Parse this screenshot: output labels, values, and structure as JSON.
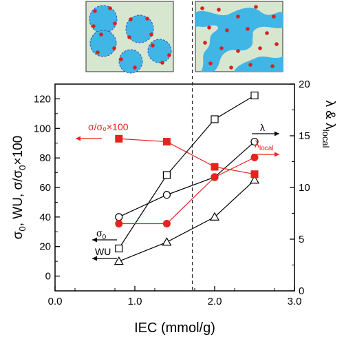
{
  "chart_data": {
    "type": "line",
    "xlabel": "IEC (mmol/g)",
    "ylabel_left": "σ₀, WU, σ/σ₀×100",
    "ylabel_right": "λ & λlocal",
    "xlim": [
      0,
      3.0
    ],
    "ylim_left": [
      -10,
      130
    ],
    "ylim_right": [
      0,
      20
    ],
    "x_ticks": [
      0.0,
      1.0,
      2.0,
      3.0
    ],
    "x_tick_labels": [
      "0.0",
      "1.0",
      "2.0",
      "3.0"
    ],
    "y_left_ticks": [
      0,
      20,
      40,
      60,
      80,
      100,
      120
    ],
    "y_left_tick_labels": [
      "0",
      "20",
      "40",
      "60",
      "80",
      "100",
      "120"
    ],
    "y_right_ticks": [
      0,
      5,
      10,
      15,
      20
    ],
    "y_right_tick_labels": [
      "0",
      "5",
      "10",
      "15",
      "20"
    ],
    "divider_x": 1.72,
    "grid": false,
    "colors": {
      "black": "#000000",
      "red": "#e8221e"
    },
    "series": [
      {
        "name": "σ₀",
        "axis": "left",
        "marker": "open-circle",
        "color": "#000000",
        "x": [
          0.8,
          1.4,
          2.0,
          2.5
        ],
        "y": [
          40,
          55,
          67,
          91
        ]
      },
      {
        "name": "WU",
        "axis": "left",
        "marker": "open-triangle",
        "color": "#000000",
        "x": [
          0.8,
          1.4,
          2.0,
          2.5
        ],
        "y": [
          10,
          23,
          40,
          65
        ]
      },
      {
        "name": "σ/σ₀×100",
        "axis": "left",
        "marker": "filled-square",
        "color": "#e8221e",
        "x": [
          0.8,
          1.4,
          2.0,
          2.5
        ],
        "y": [
          93,
          91,
          74,
          69
        ]
      },
      {
        "name": "λ",
        "axis": "right",
        "marker": "open-square",
        "color": "#000000",
        "x": [
          0.8,
          1.4,
          2.0,
          2.5
        ],
        "y": [
          4.1,
          11.2,
          16.6,
          18.9
        ]
      },
      {
        "name": "λlocal",
        "axis": "right",
        "marker": "filled-circle",
        "color": "#e8221e",
        "x": [
          0.8,
          1.4,
          2.0,
          2.5
        ],
        "y": [
          6.5,
          6.5,
          11.0,
          12.9
        ]
      }
    ],
    "annotations": [
      {
        "label": "σ/σ₀×100",
        "arrow": "left",
        "color": "#e8221e"
      },
      {
        "label": "λ",
        "arrow": "right",
        "color": "#000000"
      },
      {
        "label": "λlocal",
        "arrow": "right",
        "color": "#e8221e"
      },
      {
        "label": "σ₀",
        "arrow": "left",
        "color": "#000000"
      },
      {
        "label": "WU",
        "arrow": "left",
        "color": "#000000"
      }
    ],
    "insets": [
      {
        "description": "isolated ionic clusters",
        "background": "#d6e6cf",
        "cluster_color": "#3fb6e6",
        "dot_color": "#d92020"
      },
      {
        "description": "connected ionic channels",
        "background": "#d6e6cf",
        "channel_color": "#3fb6e6",
        "dot_color": "#d92020"
      }
    ]
  }
}
